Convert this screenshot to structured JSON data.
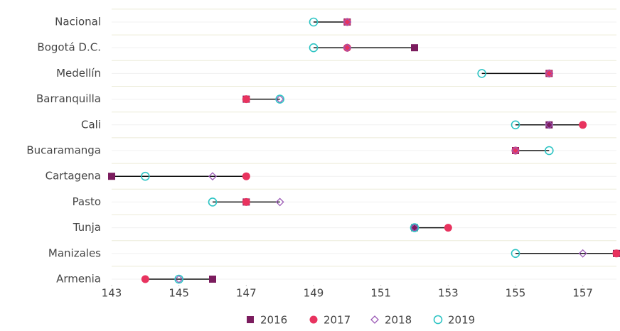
{
  "chart_data": {
    "type": "dotplot",
    "categories": [
      "Nacional",
      "Bogotá D.C.",
      "Medellín",
      "Barranquilla",
      "Cali",
      "Bucaramanga",
      "Cartagena",
      "Pasto",
      "Tunja",
      "Manizales",
      "Armenia"
    ],
    "series": [
      {
        "name": "2016",
        "color": "#7b1c5e",
        "marker": "square",
        "values": [
          150,
          152,
          156,
          147,
          156,
          155,
          143,
          147,
          152,
          158,
          146
        ]
      },
      {
        "name": "2017",
        "color": "#e8335f",
        "marker": "circle",
        "values": [
          150,
          150,
          156,
          147,
          157,
          155,
          147,
          147,
          153,
          158,
          144
        ]
      },
      {
        "name": "2018",
        "color": "#9b59b6",
        "marker": "diamond-open",
        "values": [
          150,
          150,
          156,
          148,
          156,
          155,
          146,
          148,
          152,
          157,
          145
        ]
      },
      {
        "name": "2019",
        "color": "#2ec4c4",
        "marker": "circle-open",
        "values": [
          149,
          149,
          154,
          148,
          155,
          156,
          144,
          146,
          152,
          155,
          145
        ]
      }
    ],
    "xlim": [
      143,
      158
    ],
    "xticks": [
      143,
      145,
      147,
      149,
      151,
      153,
      155,
      157
    ],
    "grid": true,
    "legend": "bottom"
  }
}
